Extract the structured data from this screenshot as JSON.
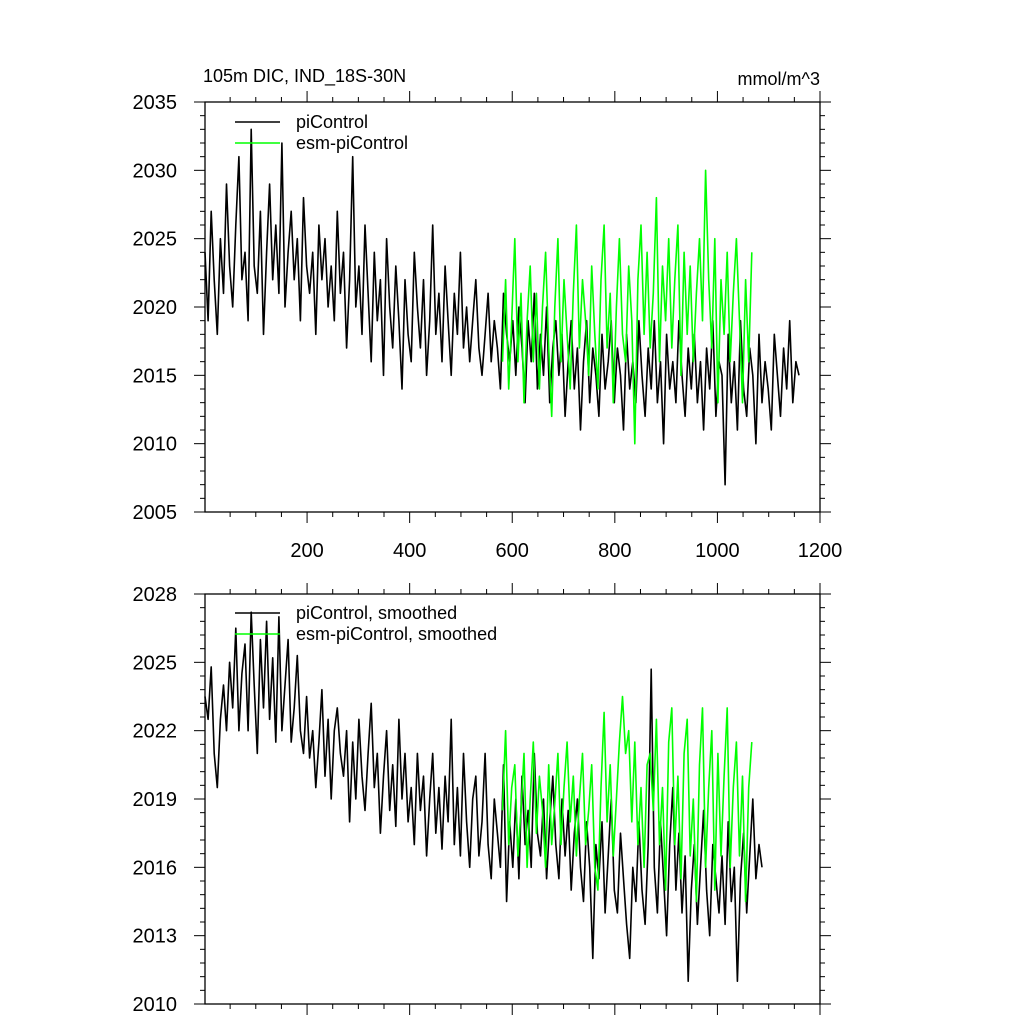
{
  "chart_data": [
    {
      "type": "line",
      "title": "105m DIC, IND_18S-30N",
      "units": "mmol/m^3",
      "xlim": [
        1,
        1200
      ],
      "ylim": [
        2005,
        2035
      ],
      "xticks": [
        200,
        400,
        600,
        800,
        1000,
        1200
      ],
      "xtick_labels": [
        "200",
        "400",
        "600",
        "800",
        "1000",
        "1200"
      ],
      "yticks": [
        2005,
        2010,
        2015,
        2020,
        2025,
        2030,
        2035
      ],
      "ytick_labels": [
        "2005",
        "2010",
        "2015",
        "2020",
        "2025",
        "2030",
        "2035"
      ],
      "legend": {
        "position": "top-left"
      },
      "grid": false,
      "series": [
        {
          "name": "piControl",
          "color": "#000000",
          "x_start": 1,
          "x_step": 6,
          "values": [
            2024,
            2019,
            2027,
            2022,
            2018,
            2025,
            2021,
            2029,
            2023,
            2020,
            2026,
            2031,
            2022,
            2024,
            2019,
            2033,
            2023,
            2021,
            2027,
            2018,
            2024,
            2029,
            2022,
            2026,
            2021,
            2032,
            2020,
            2024,
            2027,
            2022,
            2025,
            2019,
            2028,
            2023,
            2021,
            2024,
            2018,
            2026,
            2022,
            2025,
            2020,
            2023,
            2019,
            2027,
            2021,
            2024,
            2017,
            2022,
            2031,
            2020,
            2023,
            2018,
            2026,
            2021,
            2016,
            2024,
            2019,
            2022,
            2015,
            2025,
            2020,
            2017,
            2023,
            2019,
            2014,
            2022,
            2018,
            2016,
            2024,
            2020,
            2017,
            2022,
            2015,
            2019,
            2026,
            2018,
            2021,
            2016,
            2023,
            2019,
            2015,
            2021,
            2018,
            2024,
            2017,
            2020,
            2016,
            2019,
            2022,
            2017,
            2015,
            2018,
            2021,
            2016,
            2019,
            2017,
            2014,
            2021,
            2018,
            2016,
            2019,
            2015,
            2020,
            2017,
            2013,
            2019,
            2016,
            2021,
            2014,
            2018,
            2015,
            2020,
            2013,
            2017,
            2019,
            2015,
            2018,
            2012,
            2016,
            2019,
            2014,
            2017,
            2011,
            2016,
            2019,
            2013,
            2017,
            2015,
            2012,
            2018,
            2014,
            2016,
            2019,
            2013,
            2017,
            2015,
            2011,
            2018,
            2014,
            2016,
            2013,
            2019,
            2015,
            2012,
            2017,
            2014,
            2019,
            2013,
            2016,
            2010,
            2018,
            2014,
            2016,
            2013,
            2019,
            2015,
            2012,
            2017,
            2014,
            2018,
            2013,
            2016,
            2011,
            2017,
            2014,
            2019,
            2012,
            2016,
            2015,
            2007,
            2018,
            2013,
            2016,
            2011,
            2019,
            2014,
            2012,
            2017,
            2015,
            2010,
            2018,
            2013,
            2016,
            2014,
            2011,
            2018,
            2015,
            2012,
            2017,
            2014,
            2019,
            2013,
            2016,
            2015
          ]
        },
        {
          "name": "esm-piControl",
          "color": "#00ff00",
          "x_start": 581,
          "x_step": 6,
          "values": [
            2016,
            2022,
            2014,
            2019,
            2025,
            2016,
            2021,
            2013,
            2019,
            2023,
            2016,
            2021,
            2014,
            2020,
            2024,
            2017,
            2012,
            2020,
            2025,
            2016,
            2022,
            2018,
            2014,
            2021,
            2026,
            2017,
            2022,
            2019,
            2015,
            2023,
            2018,
            2014,
            2022,
            2026,
            2017,
            2021,
            2013,
            2020,
            2025,
            2018,
            2016,
            2023,
            2019,
            2010,
            2022,
            2026,
            2018,
            2024,
            2017,
            2021,
            2028,
            2016,
            2023,
            2019,
            2025,
            2017,
            2022,
            2026,
            2015,
            2024,
            2018,
            2023,
            2016,
            2021,
            2025,
            2019,
            2030,
            2022,
            2017,
            2025,
            2013,
            2022,
            2018,
            2024,
            2016,
            2021,
            2025,
            2019,
            2013,
            2022,
            2016,
            2024
          ]
        }
      ]
    },
    {
      "type": "line",
      "xlim": [
        1,
        1200
      ],
      "ylim": [
        2010,
        2028
      ],
      "xticks": [
        200,
        400,
        600,
        800,
        1000,
        1200
      ],
      "yticks": [
        2010,
        2013,
        2016,
        2019,
        2022,
        2025,
        2028
      ],
      "ytick_labels": [
        "2010",
        "2013",
        "2016",
        "2019",
        "2022",
        "2025",
        "2028"
      ],
      "legend": {
        "position": "top-left"
      },
      "grid": false,
      "series": [
        {
          "name": "piControl, smoothed",
          "color": "#000000",
          "x_start": 1,
          "x_step": 6,
          "values": [
            2023.5,
            2022.5,
            2024.8,
            2021.0,
            2019.5,
            2022.5,
            2024.0,
            2022.0,
            2025.0,
            2023.0,
            2026.5,
            2022.0,
            2024.5,
            2025.8,
            2022.0,
            2027.2,
            2024.0,
            2021.0,
            2026.0,
            2023.0,
            2026.8,
            2022.5,
            2025.2,
            2021.5,
            2027.0,
            2022.0,
            2024.0,
            2026.0,
            2021.5,
            2023.0,
            2025.3,
            2022.0,
            2021.0,
            2023.5,
            2020.8,
            2022.0,
            2019.5,
            2021.5,
            2023.8,
            2020.0,
            2022.5,
            2019.0,
            2022.0,
            2023.0,
            2021.0,
            2020.0,
            2022.0,
            2018.0,
            2021.5,
            2019.0,
            2022.5,
            2020.0,
            2018.5,
            2021.0,
            2023.2,
            2019.5,
            2021.0,
            2017.5,
            2020.0,
            2022.0,
            2018.5,
            2020.5,
            2017.8,
            2022.5,
            2019.0,
            2021.0,
            2018.0,
            2019.5,
            2017.0,
            2021.0,
            2018.5,
            2020.0,
            2016.5,
            2019.0,
            2021.0,
            2017.5,
            2019.5,
            2016.8,
            2020.0,
            2018.0,
            2022.5,
            2017.0,
            2019.5,
            2016.5,
            2021.0,
            2018.0,
            2016.0,
            2019.0,
            2020.0,
            2016.5,
            2018.0,
            2021.0,
            2017.0,
            2015.5,
            2019.0,
            2017.5,
            2016.0,
            2020.5,
            2014.5,
            2018.0,
            2016.0,
            2019.0,
            2015.5,
            2020.0,
            2017.0,
            2018.5,
            2016.0,
            2021.0,
            2017.5,
            2016.5,
            2019.0,
            2015.5,
            2018.0,
            2020.0,
            2017.0,
            2015.5,
            2019.0,
            2016.5,
            2018.5,
            2015.0,
            2017.5,
            2019.0,
            2016.0,
            2014.5,
            2018.0,
            2016.0,
            2012.0,
            2017.0,
            2015.5,
            2018.0,
            2014.0,
            2016.5,
            2019.0,
            2015.0,
            2014.0,
            2017.5,
            2015.5,
            2013.5,
            2012.0,
            2016.0,
            2014.5,
            2018.0,
            2015.0,
            2013.5,
            2017.0,
            2024.7,
            2016.0,
            2014.0,
            2018.0,
            2015.5,
            2013.0,
            2017.0,
            2019.5,
            2015.0,
            2017.5,
            2014.0,
            2016.5,
            2011.0,
            2015.0,
            2017.0,
            2013.5,
            2016.0,
            2018.5,
            2015.0,
            2013.0,
            2017.0,
            2015.5,
            2014.0,
            2016.5,
            2013.5,
            2018.0,
            2014.5,
            2016.0,
            2011.0,
            2015.5,
            2017.5,
            2014.0,
            2016.5,
            2019.0,
            2015.5,
            2017.0,
            2016.0
          ]
        },
        {
          "name": "esm-piControl, smoothed",
          "color": "#00ff00",
          "x_start": 581,
          "x_step": 6,
          "values": [
            2018.5,
            2022.0,
            2017.0,
            2019.5,
            2020.5,
            2016.5,
            2018.5,
            2021.0,
            2016.0,
            2019.0,
            2021.5,
            2017.5,
            2020.0,
            2018.5,
            2016.0,
            2020.5,
            2017.0,
            2018.8,
            2021.0,
            2017.0,
            2019.5,
            2021.5,
            2018.0,
            2020.0,
            2016.5,
            2019.0,
            2021.0,
            2017.0,
            2018.5,
            2020.5,
            2016.0,
            2015.0,
            2019.5,
            2022.8,
            2018.0,
            2020.5,
            2016.5,
            2019.0,
            2021.5,
            2023.5,
            2021.0,
            2022.0,
            2018.0,
            2021.5,
            2017.0,
            2019.5,
            2016.0,
            2020.5,
            2021.0,
            2018.5,
            2022.5,
            2017.0,
            2019.5,
            2015.0,
            2021.5,
            2023.0,
            2017.0,
            2020.0,
            2015.5,
            2021.0,
            2022.5,
            2016.5,
            2019.0,
            2014.5,
            2020.5,
            2023.0,
            2016.0,
            2019.5,
            2022.0,
            2015.0,
            2021.0,
            2016.5,
            2020.0,
            2023.0,
            2016.0,
            2019.5,
            2021.5,
            2016.5,
            2020.0,
            2014.5,
            2019.5,
            2021.5
          ]
        }
      ]
    }
  ]
}
